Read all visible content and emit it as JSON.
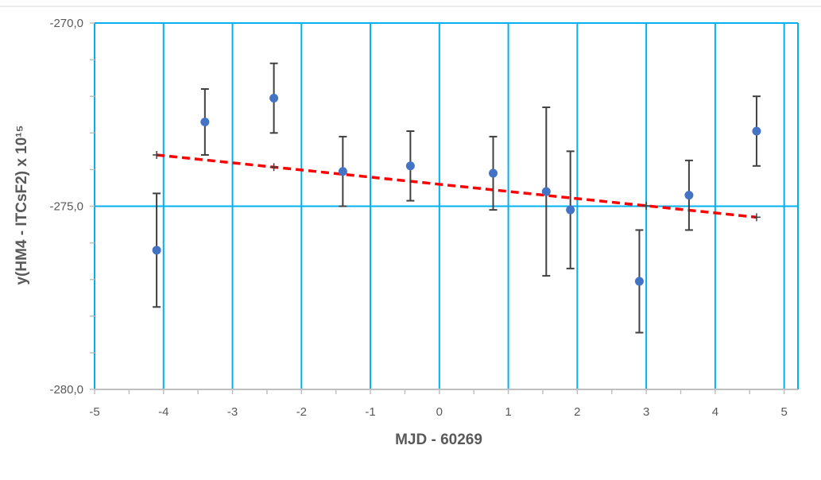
{
  "chart_data": {
    "type": "scatter",
    "title": "",
    "xlabel": "MJD - 60269",
    "ylabel": "y(HM4 - ITCsF2) x 10¹⁵",
    "xlim": [
      -5,
      5.2
    ],
    "ylim": [
      -280,
      -270
    ],
    "x_ticks": [
      -5,
      -4,
      -3,
      -2,
      -1,
      0,
      1,
      2,
      3,
      4,
      5
    ],
    "x_tick_labels": [
      "-5",
      "-4",
      "-3",
      "-2",
      "-1",
      "0",
      "1",
      "2",
      "3",
      "4",
      "5"
    ],
    "y_ticks": [
      -280,
      -275,
      -270
    ],
    "y_tick_labels": [
      "-280,0",
      "-275,0",
      "-270,0"
    ],
    "grid": true,
    "legend": "none",
    "series": [
      {
        "kind": "points-with-error-bars",
        "points": [
          {
            "x": -4.1,
            "y": -276.2,
            "err": 1.55
          },
          {
            "x": -3.4,
            "y": -272.7,
            "err": 0.9
          },
          {
            "x": -2.4,
            "y": -272.05,
            "err": 0.95
          },
          {
            "x": -1.4,
            "y": -274.05,
            "err": 0.95
          },
          {
            "x": -0.42,
            "y": -273.9,
            "err": 0.95
          },
          {
            "x": 0.78,
            "y": -274.1,
            "err": 1.0
          },
          {
            "x": 1.55,
            "y": -274.6,
            "err": 2.3
          },
          {
            "x": 1.9,
            "y": -275.1,
            "err": 1.6
          },
          {
            "x": 2.9,
            "y": -277.05,
            "err": 1.4
          },
          {
            "x": 3.62,
            "y": -274.7,
            "err": 0.95
          },
          {
            "x": 4.6,
            "y": -272.95,
            "err": 0.95
          }
        ]
      },
      {
        "kind": "linear-trend",
        "x": [
          -4.1,
          4.6
        ],
        "y": [
          -273.6,
          -275.3
        ],
        "markers_x": [
          -4.1,
          -2.4,
          3.0,
          4.6
        ]
      }
    ]
  },
  "colors": {
    "point": "#4472c4",
    "error_bar": "#404040",
    "trend": "#ff0000",
    "grid": "#00b0f0",
    "tick_text": "#595959",
    "axis": "#bfbfbf"
  }
}
